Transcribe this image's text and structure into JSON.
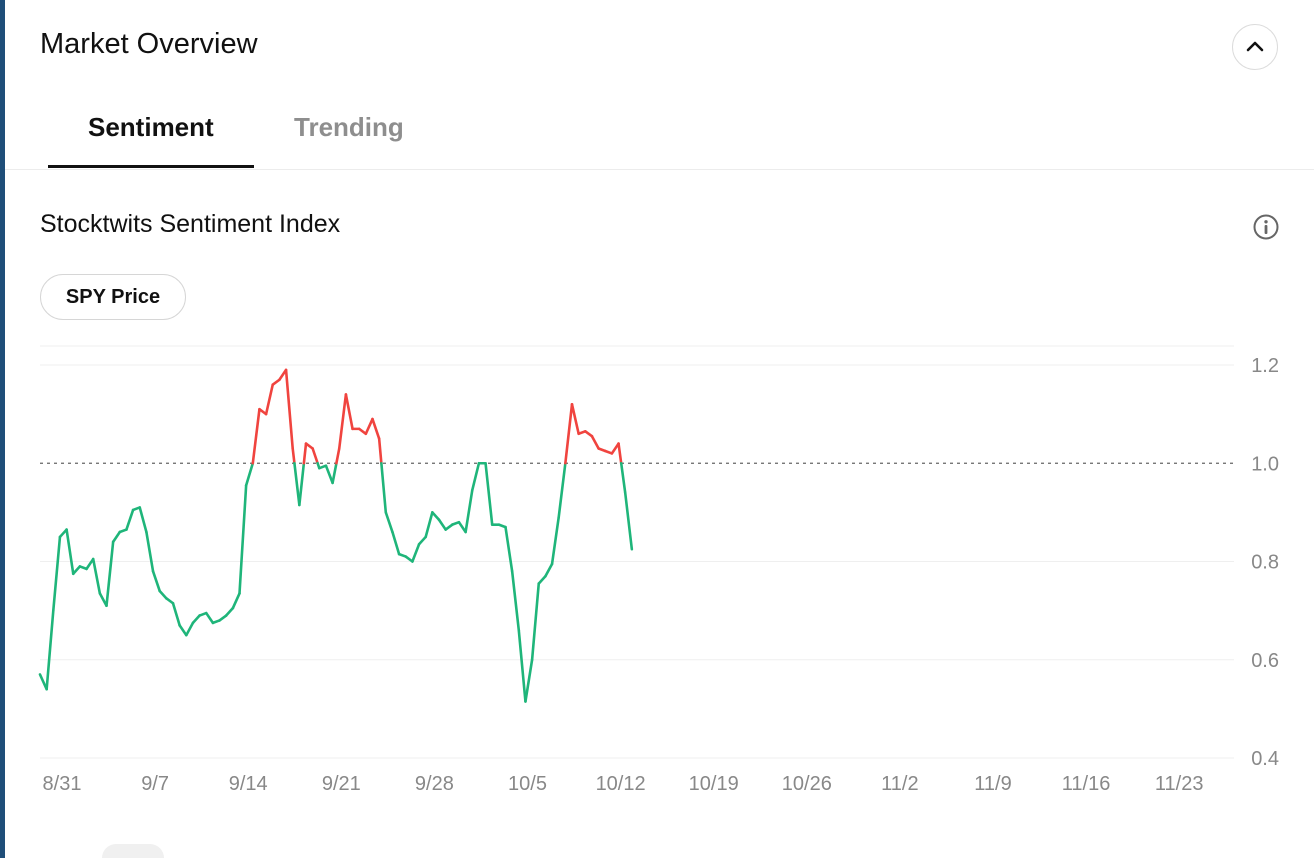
{
  "header": {
    "title": "Market Overview"
  },
  "tabs": [
    {
      "label": "Sentiment",
      "active": true
    },
    {
      "label": "Trending",
      "active": false
    }
  ],
  "chart_title": "Stocktwits Sentiment Index",
  "toggle": {
    "label": "SPY Price"
  },
  "colors": {
    "positive": "#1fb57a",
    "negative": "#f0443f",
    "tab_active": "#111111",
    "tab_inactive": "#8e8e8e"
  },
  "icons": [
    "chevron-up-icon",
    "info-icon"
  ],
  "chart_data": {
    "type": "line",
    "title": "Stocktwits Sentiment Index",
    "xlabel": "",
    "ylabel": "",
    "ylim": [
      0.4,
      1.2
    ],
    "y_ticks": [
      "1.2",
      "1.0",
      "0.8",
      "0.6",
      "0.4"
    ],
    "y_tick_values": [
      1.2,
      1.0,
      0.8,
      0.6,
      0.4
    ],
    "x_ticks": [
      "8/31",
      "9/7",
      "9/14",
      "9/21",
      "9/28",
      "10/5",
      "10/12",
      "10/19",
      "10/26",
      "11/2",
      "11/9",
      "11/16",
      "11/23"
    ],
    "reference_line": 1.0,
    "grid": "horizontal",
    "color_rule": "green below 1.0, red above 1.0",
    "points_per_day": 2,
    "values": [
      0.57,
      0.54,
      0.7,
      0.85,
      0.865,
      0.775,
      0.79,
      0.785,
      0.805,
      0.735,
      0.71,
      0.84,
      0.86,
      0.865,
      0.905,
      0.91,
      0.86,
      0.78,
      0.74,
      0.725,
      0.715,
      0.67,
      0.65,
      0.675,
      0.69,
      0.695,
      0.675,
      0.68,
      0.69,
      0.705,
      0.735,
      0.955,
      1.0,
      1.11,
      1.1,
      1.16,
      1.17,
      1.19,
      1.03,
      0.915,
      1.04,
      1.03,
      0.99,
      0.995,
      0.96,
      1.03,
      1.14,
      1.07,
      1.07,
      1.06,
      1.09,
      1.05,
      0.9,
      0.86,
      0.815,
      0.81,
      0.8,
      0.835,
      0.85,
      0.9,
      0.885,
      0.865,
      0.875,
      0.88,
      0.86,
      0.945,
      1.0,
      1.0,
      0.875,
      0.875,
      0.87,
      0.78,
      0.66,
      0.515,
      0.6,
      0.755,
      0.77,
      0.795,
      0.89,
      1.0,
      1.12,
      1.06,
      1.065,
      1.055,
      1.03,
      1.025,
      1.02,
      1.04,
      0.94,
      0.825
    ]
  },
  "range_selector": {
    "visible": "partially cut off at bottom"
  }
}
